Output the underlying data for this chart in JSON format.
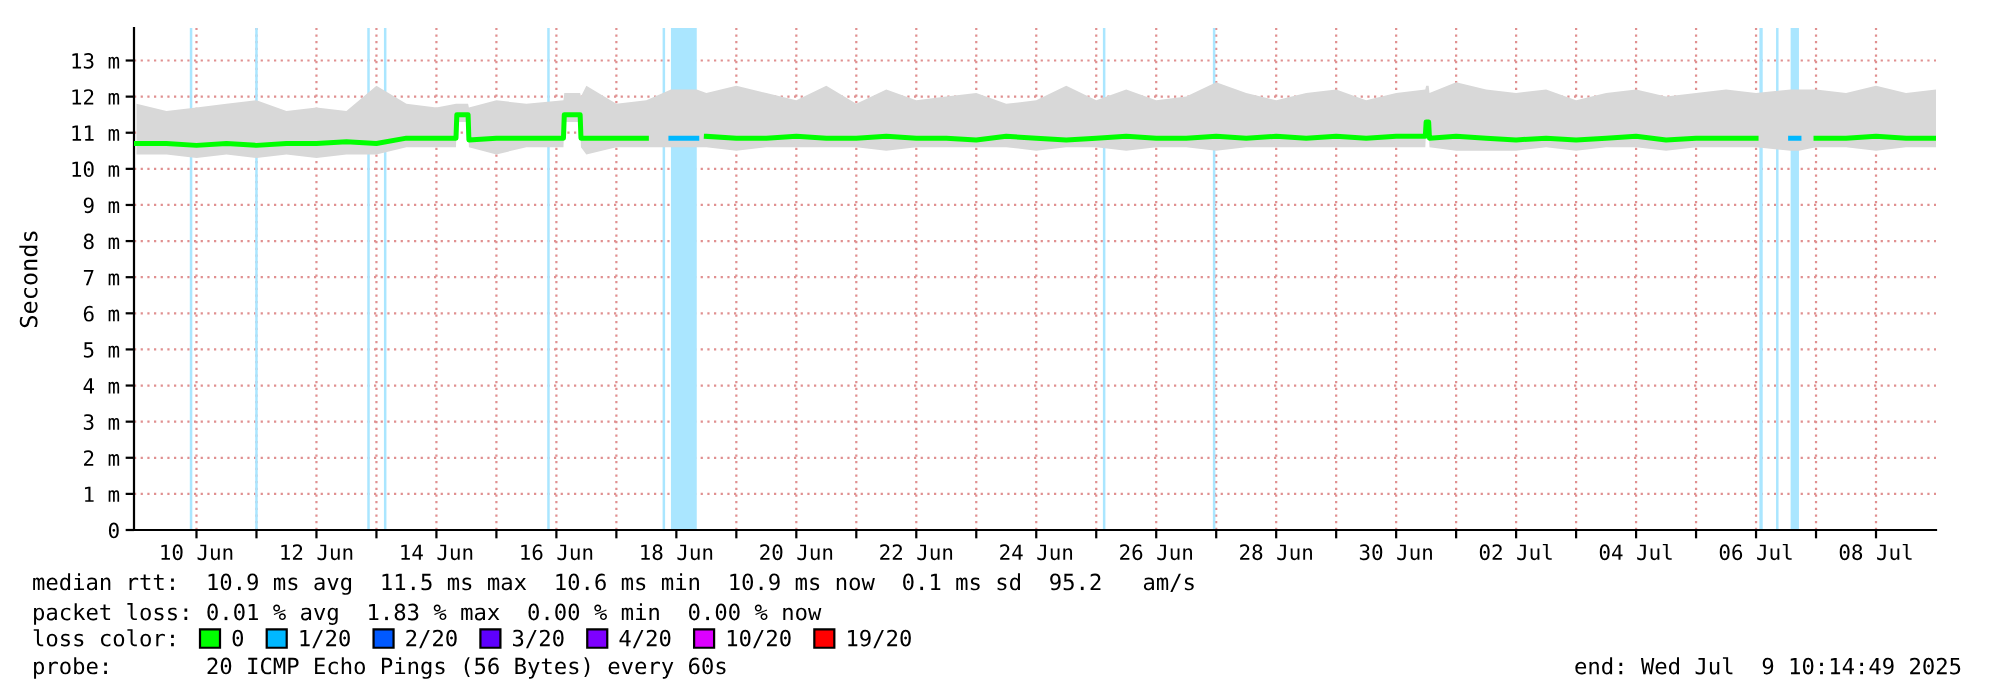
{
  "chart_data": {
    "type": "line",
    "ylabel": "Seconds",
    "x": [
      "2025-06-09T00:00",
      "2025-06-09T12:00",
      "2025-06-10T00:00",
      "2025-06-10T12:00",
      "2025-06-11T00:00",
      "2025-06-11T12:00",
      "2025-06-12T00:00",
      "2025-06-12T12:00",
      "2025-06-13T00:00",
      "2025-06-13T12:00",
      "2025-06-14T00:00",
      "2025-06-14T07:50",
      "2025-06-14T08:10",
      "2025-06-14T12:40",
      "2025-06-14T13:00",
      "2025-06-15T00:00",
      "2025-06-15T12:00",
      "2025-06-16T02:50",
      "2025-06-16T03:10",
      "2025-06-16T09:30",
      "2025-06-16T09:50",
      "2025-06-16T12:00",
      "2025-06-17T00:00",
      "2025-06-17T12:00",
      "2025-06-17T21:50",
      "2025-06-18T08:10",
      "2025-06-18T12:00",
      "2025-06-19T00:00",
      "2025-06-19T12:00",
      "2025-06-20T00:00",
      "2025-06-20T12:00",
      "2025-06-21T00:00",
      "2025-06-21T12:00",
      "2025-06-22T00:00",
      "2025-06-22T12:00",
      "2025-06-23T00:00",
      "2025-06-23T12:00",
      "2025-06-24T00:00",
      "2025-06-24T12:00",
      "2025-06-25T00:00",
      "2025-06-25T12:00",
      "2025-06-26T00:00",
      "2025-06-26T12:00",
      "2025-06-27T00:00",
      "2025-06-27T12:00",
      "2025-06-28T00:00",
      "2025-06-28T12:00",
      "2025-06-29T00:00",
      "2025-06-29T12:00",
      "2025-06-30T00:00",
      "2025-06-30T11:40",
      "2025-06-30T12:00",
      "2025-06-30T13:00",
      "2025-06-30T13:20",
      "2025-07-01T00:00",
      "2025-07-01T12:00",
      "2025-07-02T00:00",
      "2025-07-02T12:00",
      "2025-07-03T00:00",
      "2025-07-03T12:00",
      "2025-07-04T00:00",
      "2025-07-04T12:00",
      "2025-07-05T00:00",
      "2025-07-05T12:00",
      "2025-07-06T00:00",
      "2025-07-06T13:50",
      "2025-07-06T17:10",
      "2025-07-07T00:00",
      "2025-07-07T12:00",
      "2025-07-08T00:00",
      "2025-07-08T12:00",
      "2025-07-09T00:00"
    ],
    "series": [
      {
        "name": "0",
        "color": "#00ff00",
        "values": [
          10.7,
          10.7,
          10.65,
          10.7,
          10.65,
          10.7,
          10.7,
          10.75,
          10.7,
          10.85,
          10.85,
          10.85,
          11.5,
          11.5,
          10.8,
          10.85,
          10.85,
          10.85,
          11.5,
          11.5,
          10.85,
          10.85,
          10.85,
          10.85,
          null,
          null,
          10.9,
          10.85,
          10.85,
          10.9,
          10.85,
          10.85,
          10.9,
          10.85,
          10.85,
          10.8,
          10.9,
          10.85,
          10.8,
          10.85,
          10.9,
          10.85,
          10.85,
          10.9,
          10.85,
          10.9,
          10.85,
          10.9,
          10.85,
          10.9,
          10.9,
          11.3,
          11.3,
          10.85,
          10.9,
          10.85,
          10.8,
          10.85,
          10.8,
          10.85,
          10.9,
          10.8,
          10.85,
          10.85,
          10.85,
          null,
          null,
          10.85,
          10.85,
          10.9,
          10.85,
          10.85
        ],
        "lower": [
          10.4,
          10.4,
          10.3,
          10.4,
          10.3,
          10.4,
          10.3,
          10.4,
          10.4,
          10.6,
          10.6,
          10.6,
          11.3,
          11.3,
          10.6,
          10.4,
          10.6,
          10.6,
          11.3,
          11.3,
          10.6,
          10.4,
          10.6,
          10.6,
          10.6,
          10.6,
          10.6,
          10.5,
          10.6,
          10.6,
          10.6,
          10.6,
          10.5,
          10.6,
          10.6,
          10.6,
          10.6,
          10.5,
          10.6,
          10.6,
          10.5,
          10.6,
          10.6,
          10.5,
          10.6,
          10.6,
          10.6,
          10.6,
          10.6,
          10.6,
          10.6,
          11.1,
          11.1,
          10.6,
          10.5,
          10.5,
          10.5,
          10.6,
          10.5,
          10.6,
          10.6,
          10.5,
          10.6,
          10.6,
          10.6,
          10.5,
          10.5,
          10.6,
          10.6,
          10.5,
          10.6,
          10.6
        ],
        "upper": [
          11.8,
          11.6,
          11.7,
          11.8,
          11.9,
          11.6,
          11.7,
          11.6,
          12.3,
          11.8,
          11.7,
          11.8,
          11.8,
          11.8,
          11.7,
          11.9,
          11.8,
          11.9,
          12.1,
          12.1,
          12.0,
          12.3,
          11.8,
          11.9,
          12.2,
          12.2,
          12.1,
          12.3,
          12.1,
          11.9,
          12.3,
          11.8,
          12.2,
          11.9,
          12.0,
          12.1,
          11.8,
          11.9,
          12.3,
          11.9,
          12.2,
          11.9,
          12.0,
          12.4,
          12.1,
          11.9,
          12.1,
          12.2,
          11.9,
          12.1,
          12.2,
          12.3,
          12.3,
          12.1,
          12.4,
          12.2,
          12.1,
          12.2,
          11.9,
          12.1,
          12.2,
          12.0,
          12.1,
          12.2,
          12.1,
          12.2,
          12.2,
          12.2,
          12.1,
          12.3,
          12.1,
          12.2
        ]
      },
      {
        "name": "1/20",
        "color": "#00b8ff",
        "x": [
          "2025-06-17T21:50",
          "2025-06-18T08:10",
          "2025-06-27T00:00",
          "2025-07-06T13:50",
          "2025-07-06T17:10"
        ],
        "values": [
          10.85,
          10.85,
          null,
          10.85,
          10.85
        ]
      },
      {
        "name": "2/20",
        "color": "#0059ff",
        "values": [
          null,
          null,
          null,
          null,
          null,
          null,
          null,
          null,
          null,
          null,
          null,
          null,
          null,
          null,
          null,
          null,
          null,
          null,
          null,
          null,
          null,
          null,
          null,
          null,
          null,
          null,
          null,
          null,
          null,
          null,
          null,
          null,
          null,
          null,
          null,
          null,
          null,
          null,
          null,
          null,
          null,
          null,
          null,
          null,
          null,
          null,
          null,
          null,
          null,
          null,
          null,
          null,
          null,
          null,
          null,
          null,
          null,
          null,
          null,
          null,
          null,
          null,
          null,
          null,
          null,
          null,
          null,
          null,
          null,
          null,
          null,
          null
        ]
      },
      {
        "name": "3/20",
        "color": "#5e00ff",
        "values": [
          null,
          null,
          null,
          null,
          null,
          null,
          null,
          null,
          null,
          null,
          null,
          null,
          null,
          null,
          null,
          null,
          null,
          null,
          null,
          null,
          null,
          null,
          null,
          null,
          null,
          null,
          null,
          null,
          null,
          null,
          null,
          null,
          null,
          null,
          null,
          null,
          null,
          null,
          null,
          null,
          null,
          null,
          null,
          null,
          null,
          null,
          null,
          null,
          null,
          null,
          null,
          null,
          null,
          null,
          null,
          null,
          null,
          null,
          null,
          null,
          null,
          null,
          null,
          null,
          null,
          null,
          null,
          null,
          null,
          null,
          null,
          null
        ]
      },
      {
        "name": "4/20",
        "color": "#7e00ff",
        "values": [
          null,
          null,
          null,
          null,
          null,
          null,
          null,
          null,
          null,
          null,
          null,
          null,
          null,
          null,
          null,
          null,
          null,
          null,
          null,
          null,
          null,
          null,
          null,
          null,
          null,
          null,
          null,
          null,
          null,
          null,
          null,
          null,
          null,
          null,
          null,
          null,
          null,
          null,
          null,
          null,
          null,
          null,
          null,
          null,
          null,
          null,
          null,
          null,
          null,
          null,
          null,
          null,
          null,
          null,
          null,
          null,
          null,
          null,
          null,
          null,
          null,
          null,
          null,
          null,
          null,
          null,
          null,
          null,
          null,
          null,
          null,
          null
        ]
      },
      {
        "name": "10/20",
        "color": "#dd00ff",
        "values": [
          null,
          null,
          null,
          null,
          null,
          null,
          null,
          null,
          null,
          null,
          null,
          null,
          null,
          null,
          null,
          null,
          null,
          null,
          null,
          null,
          null,
          null,
          null,
          null,
          null,
          null,
          null,
          null,
          null,
          null,
          null,
          null,
          null,
          null,
          null,
          null,
          null,
          null,
          null,
          null,
          null,
          null,
          null,
          null,
          null,
          null,
          null,
          null,
          null,
          null,
          null,
          null,
          null,
          null,
          null,
          null,
          null,
          null,
          null,
          null,
          null,
          null,
          null,
          null,
          null,
          null,
          null,
          null,
          null,
          null,
          null,
          null
        ]
      },
      {
        "name": "19/20",
        "color": "#ff0000",
        "values": [
          null,
          null,
          null,
          null,
          null,
          null,
          null,
          null,
          null,
          null,
          null,
          null,
          null,
          null,
          null,
          null,
          null,
          null,
          null,
          null,
          null,
          null,
          null,
          null,
          null,
          null,
          null,
          null,
          null,
          null,
          null,
          null,
          null,
          null,
          null,
          null,
          null,
          null,
          null,
          null,
          null,
          null,
          null,
          null,
          null,
          null,
          null,
          null,
          null,
          null,
          null,
          null,
          null,
          null,
          null,
          null,
          null,
          null,
          null,
          null,
          null,
          null,
          null,
          null,
          null,
          null,
          null,
          null,
          null,
          null,
          null,
          null
        ]
      }
    ],
    "bands": [
      {
        "axis": "x",
        "from": "2025-06-09T21:20",
        "to": "2025-06-09T22:20",
        "color": "#aae6ff"
      },
      {
        "axis": "x",
        "from": "2025-06-10T23:30",
        "to": "2025-06-11T00:30",
        "color": "#aae6ff"
      },
      {
        "axis": "x",
        "from": "2025-06-12T20:20",
        "to": "2025-06-12T21:20",
        "color": "#aae6ff"
      },
      {
        "axis": "x",
        "from": "2025-06-13T03:00",
        "to": "2025-06-13T04:00",
        "color": "#aae6ff"
      },
      {
        "axis": "x",
        "from": "2025-06-15T20:20",
        "to": "2025-06-15T21:20",
        "color": "#aae6ff"
      },
      {
        "axis": "x",
        "from": "2025-06-17T18:30",
        "to": "2025-06-17T19:30",
        "color": "#aae6ff"
      },
      {
        "axis": "x",
        "from": "2025-06-17T21:50",
        "to": "2025-06-18T08:10",
        "color": "#aae6ff"
      },
      {
        "axis": "x",
        "from": "2025-06-25T02:40",
        "to": "2025-06-25T03:40",
        "color": "#aae6ff"
      },
      {
        "axis": "x",
        "from": "2025-06-26T22:40",
        "to": "2025-06-26T23:40",
        "color": "#aae6ff"
      },
      {
        "axis": "x",
        "from": "2025-07-06T01:20",
        "to": "2025-07-06T02:40",
        "color": "#aae6ff"
      },
      {
        "axis": "x",
        "from": "2025-07-06T08:00",
        "to": "2025-07-06T09:00",
        "color": "#aae6ff"
      },
      {
        "axis": "x",
        "from": "2025-07-06T13:50",
        "to": "2025-07-06T17:10",
        "color": "#aae6ff"
      }
    ],
    "xlim": [
      "2025-06-08T23:00",
      "2025-07-09T00:00"
    ],
    "xticks": [
      {
        "value": "2025-06-10",
        "label": "10 Jun"
      },
      {
        "value": "2025-06-11",
        "label": null
      },
      {
        "value": "2025-06-12",
        "label": "12 Jun"
      },
      {
        "value": "2025-06-13",
        "label": null
      },
      {
        "value": "2025-06-14",
        "label": "14 Jun"
      },
      {
        "value": "2025-06-15",
        "label": null
      },
      {
        "value": "2025-06-16",
        "label": "16 Jun"
      },
      {
        "value": "2025-06-17",
        "label": null
      },
      {
        "value": "2025-06-18",
        "label": "18 Jun"
      },
      {
        "value": "2025-06-19",
        "label": null
      },
      {
        "value": "2025-06-20",
        "label": "20 Jun"
      },
      {
        "value": "2025-06-21",
        "label": null
      },
      {
        "value": "2025-06-22",
        "label": "22 Jun"
      },
      {
        "value": "2025-06-23",
        "label": null
      },
      {
        "value": "2025-06-24",
        "label": "24 Jun"
      },
      {
        "value": "2025-06-25",
        "label": null
      },
      {
        "value": "2025-06-26",
        "label": "26 Jun"
      },
      {
        "value": "2025-06-27",
        "label": null
      },
      {
        "value": "2025-06-28",
        "label": "28 Jun"
      },
      {
        "value": "2025-06-29",
        "label": null
      },
      {
        "value": "2025-06-30",
        "label": "30 Jun"
      },
      {
        "value": "2025-07-01",
        "label": null
      },
      {
        "value": "2025-07-02",
        "label": "02 Jul"
      },
      {
        "value": "2025-07-03",
        "label": null
      },
      {
        "value": "2025-07-04",
        "label": "04 Jul"
      },
      {
        "value": "2025-07-05",
        "label": null
      },
      {
        "value": "2025-07-06",
        "label": "06 Jul"
      },
      {
        "value": "2025-07-07",
        "label": null
      },
      {
        "value": "2025-07-08",
        "label": "08 Jul"
      }
    ],
    "ylim": [
      0,
      13.9
    ],
    "yticks": [
      0,
      {
        "value": 1,
        "label": "1 m"
      },
      {
        "value": 2,
        "label": "2 m"
      },
      {
        "value": 3,
        "label": "3 m"
      },
      {
        "value": 4,
        "label": "4 m"
      },
      {
        "value": 5,
        "label": "5 m"
      },
      {
        "value": 6,
        "label": "6 m"
      },
      {
        "value": 7,
        "label": "7 m"
      },
      {
        "value": 8,
        "label": "8 m"
      },
      {
        "value": 9,
        "label": "9 m"
      },
      {
        "value": 10,
        "label": "10 m"
      },
      {
        "value": 11,
        "label": "11 m"
      },
      {
        "value": 12,
        "label": "12 m"
      },
      {
        "value": 13,
        "label": "13 m"
      }
    ],
    "grid": true,
    "legend": "bottom",
    "legend_title": "loss color:",
    "annotations": [
      "median rtt:  10.9 ms avg  11.5 ms max  10.6 ms min  10.9 ms now  0.1 ms sd  95.2   am/s",
      "packet loss: 0.01 % avg  1.83 % max  0.00 % min  0.00 % now",
      "probe:       20 ICMP Echo Pings (56 Bytes) every 60s",
      "end: Wed Jul  9 10:14:49 2025"
    ]
  }
}
